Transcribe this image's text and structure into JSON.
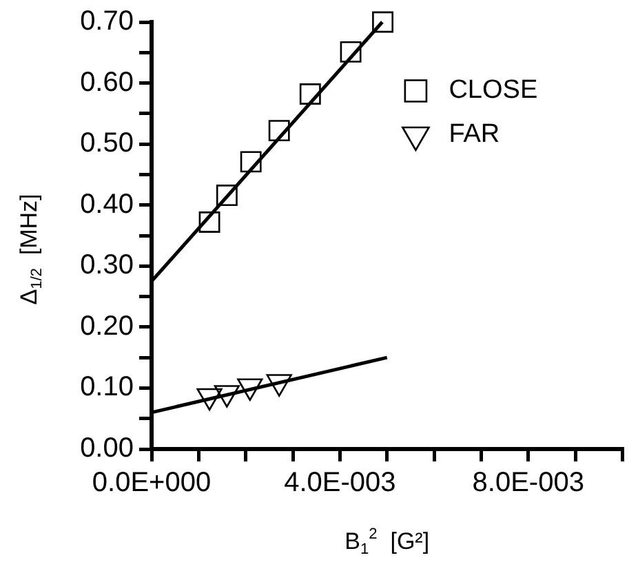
{
  "chart_data": {
    "type": "scatter",
    "xlabel": "B$_{1}$$^{2}$  [G²]",
    "ylabel": "Δ$_{1/2}$  [MHz]",
    "series": [
      {
        "name": "CLOSE",
        "marker": "square",
        "color": "#000000",
        "x": [
          0.00123,
          0.0016,
          0.00211,
          0.00271,
          0.00337,
          0.00423,
          0.00491
        ],
        "values": [
          0.372,
          0.416,
          0.471,
          0.522,
          0.582,
          0.651,
          0.7
        ]
      },
      {
        "name": "FAR",
        "marker": "triangle",
        "color": "#000000",
        "x": [
          0.00123,
          0.0016,
          0.00209,
          0.00271
        ],
        "values": [
          0.087,
          0.092,
          0.103,
          0.11
        ]
      },
      {
        "type": "line",
        "marker": "none",
        "line_style": "solid",
        "color": "#000000",
        "x": [
          0,
          0.0049
        ],
        "values": [
          0.275,
          0.7
        ]
      },
      {
        "type": "line",
        "marker": "none",
        "line_style": "solid",
        "color": "#000000",
        "x": [
          0,
          0.005
        ],
        "values": [
          0.06,
          0.15
        ]
      }
    ],
    "xlim": [
      0,
      0.01
    ],
    "xticks": [
      {
        "value": 0,
        "label": "0.0E+000"
      },
      {
        "value": 0.001,
        "label": null
      },
      {
        "value": 0.002,
        "label": null
      },
      {
        "value": 0.003,
        "label": null
      },
      {
        "value": 0.004,
        "label": "4.0E-003"
      },
      {
        "value": 0.005,
        "label": null
      },
      {
        "value": 0.006,
        "label": null
      },
      {
        "value": 0.007,
        "label": null
      },
      {
        "value": 0.008,
        "label": "8.0E-003"
      },
      {
        "value": 0.009,
        "label": null
      },
      {
        "value": 0.01,
        "label": null
      }
    ],
    "ylim": [
      0,
      0.7
    ],
    "yticks": [
      {
        "value": 0,
        "label": "0.00"
      },
      {
        "value": 0.05,
        "label": null
      },
      {
        "value": 0.1,
        "label": "0.10"
      },
      {
        "value": 0.15,
        "label": null
      },
      {
        "value": 0.2,
        "label": "0.20"
      },
      {
        "value": 0.25,
        "label": null
      },
      {
        "value": 0.3,
        "label": "0.30"
      },
      {
        "value": 0.35,
        "label": null
      },
      {
        "value": 0.4,
        "label": "0.40"
      },
      {
        "value": 0.45,
        "label": null
      },
      {
        "value": 0.5,
        "label": "0.50"
      },
      {
        "value": 0.55,
        "label": null
      },
      {
        "value": 0.6,
        "label": "0.60"
      },
      {
        "value": 0.65,
        "label": null
      },
      {
        "value": 0.7,
        "label": "0.70"
      }
    ],
    "legend": "top right"
  }
}
